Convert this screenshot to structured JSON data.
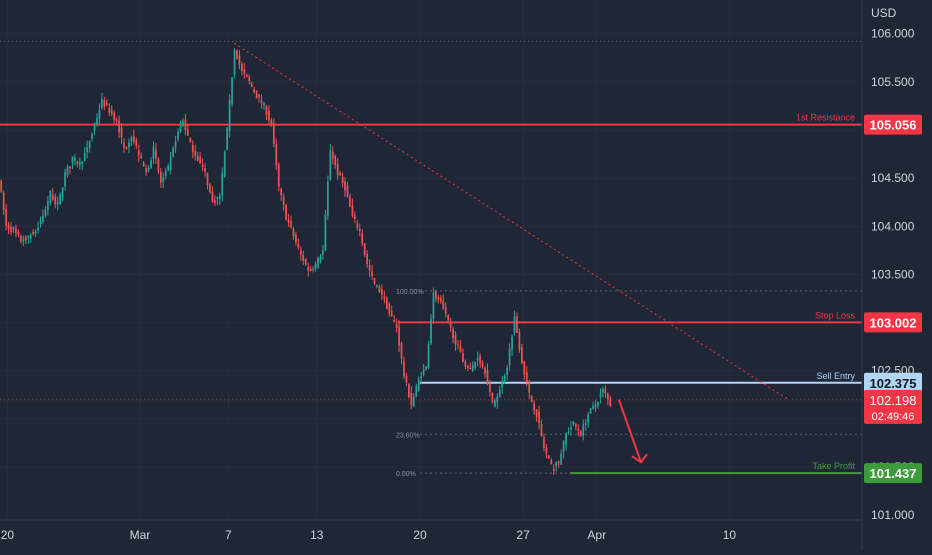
{
  "chart_data": {
    "type": "candlestick",
    "currency_label": "USD",
    "y_ticks": [
      "106.000",
      "105.500",
      "105.000",
      "104.500",
      "104.000",
      "103.500",
      "103.000",
      "102.500",
      "102.000",
      "101.500",
      "101.000"
    ],
    "x_ticks": [
      {
        "label": "20",
        "day": 0
      },
      {
        "label": "Mar",
        "day": 9
      },
      {
        "label": "7",
        "day": 15
      },
      {
        "label": "13",
        "day": 21
      },
      {
        "label": "20",
        "day": 28
      },
      {
        "label": "27",
        "day": 35
      },
      {
        "label": "Apr",
        "day": 40
      },
      {
        "label": "10",
        "day": 49
      }
    ],
    "ylim": [
      100.95,
      106.35
    ],
    "xlim": [
      -0.5,
      58
    ],
    "levels": [
      {
        "name": "1st Resistance",
        "value": 105.056,
        "value_label": "105.056",
        "color": "#f23645"
      },
      {
        "name": "Stop Loss",
        "value": 103.002,
        "value_label": "103.002",
        "color": "#f23645"
      },
      {
        "name": "Sell Entry",
        "value": 102.375,
        "value_label": "102.375",
        "color": "#b2d4f5"
      },
      {
        "name": "Take Profit",
        "value": 101.437,
        "value_label": "101.437",
        "color": "#3e9b3b"
      }
    ],
    "current_price": {
      "value": 102.198,
      "value_label": "102.198",
      "countdown": "02:49:46",
      "color": "#f23645"
    },
    "fibonacci": [
      {
        "label": "100.00%",
        "value": 103.33
      },
      {
        "label": "23.60%",
        "value": 101.84
      },
      {
        "label": "0.00%",
        "value": 101.437
      }
    ],
    "trendline": {
      "from": {
        "day": 15.4,
        "value": 105.9
      },
      "to": {
        "day": 53,
        "value": 102.2
      }
    },
    "prev_high_line": {
      "value": 105.92
    },
    "path": [
      [
        -0.5,
        104.5
      ],
      [
        0,
        104.0
      ],
      [
        0.5,
        103.95
      ],
      [
        1,
        103.85
      ],
      [
        1.5,
        103.9
      ],
      [
        2,
        103.95
      ],
      [
        2.5,
        104.1
      ],
      [
        3,
        104.35
      ],
      [
        3.5,
        104.2
      ],
      [
        4,
        104.55
      ],
      [
        4.5,
        104.7
      ],
      [
        5,
        104.65
      ],
      [
        5.5,
        104.8
      ],
      [
        6,
        105.05
      ],
      [
        6.5,
        105.3
      ],
      [
        7,
        105.2
      ],
      [
        7.5,
        105.1
      ],
      [
        8,
        104.8
      ],
      [
        8.5,
        104.95
      ],
      [
        9,
        104.75
      ],
      [
        9.5,
        104.55
      ],
      [
        10,
        104.8
      ],
      [
        10.5,
        104.45
      ],
      [
        11,
        104.6
      ],
      [
        11.5,
        104.9
      ],
      [
        12,
        105.1
      ],
      [
        12.5,
        104.85
      ],
      [
        13,
        104.7
      ],
      [
        13.5,
        104.55
      ],
      [
        14,
        104.25
      ],
      [
        14.5,
        104.3
      ],
      [
        15,
        105.0
      ],
      [
        15.5,
        105.85
      ],
      [
        16,
        105.6
      ],
      [
        16.5,
        105.5
      ],
      [
        17,
        105.35
      ],
      [
        17.5,
        105.25
      ],
      [
        18,
        105.05
      ],
      [
        18.5,
        104.4
      ],
      [
        19,
        104.1
      ],
      [
        19.5,
        103.9
      ],
      [
        20,
        103.7
      ],
      [
        20.5,
        103.55
      ],
      [
        21,
        103.6
      ],
      [
        21.5,
        103.75
      ],
      [
        22,
        104.8
      ],
      [
        22.5,
        104.55
      ],
      [
        23,
        104.4
      ],
      [
        23.5,
        104.1
      ],
      [
        24,
        103.95
      ],
      [
        24.5,
        103.6
      ],
      [
        25,
        103.4
      ],
      [
        25.5,
        103.3
      ],
      [
        26,
        103.1
      ],
      [
        26.5,
        102.95
      ],
      [
        27,
        102.45
      ],
      [
        27.5,
        102.15
      ],
      [
        28,
        102.4
      ],
      [
        28.5,
        102.55
      ],
      [
        29,
        103.3
      ],
      [
        29.5,
        103.2
      ],
      [
        30,
        103.0
      ],
      [
        30.5,
        102.8
      ],
      [
        31,
        102.6
      ],
      [
        31.5,
        102.5
      ],
      [
        32,
        102.65
      ],
      [
        32.5,
        102.5
      ],
      [
        33,
        102.15
      ],
      [
        33.5,
        102.3
      ],
      [
        34,
        102.55
      ],
      [
        34.5,
        103.05
      ],
      [
        35,
        102.6
      ],
      [
        35.5,
        102.25
      ],
      [
        36,
        102.05
      ],
      [
        36.5,
        101.7
      ],
      [
        37,
        101.5
      ],
      [
        37.5,
        101.55
      ],
      [
        38,
        101.85
      ],
      [
        38.5,
        101.95
      ],
      [
        39,
        101.85
      ],
      [
        39.5,
        102.05
      ],
      [
        40,
        102.15
      ],
      [
        40.5,
        102.3
      ],
      [
        41,
        102.15
      ]
    ],
    "forecast_arrow": {
      "from": {
        "day": 41.5,
        "value": 102.2
      },
      "to": {
        "day": 43,
        "value": 101.55
      }
    }
  }
}
